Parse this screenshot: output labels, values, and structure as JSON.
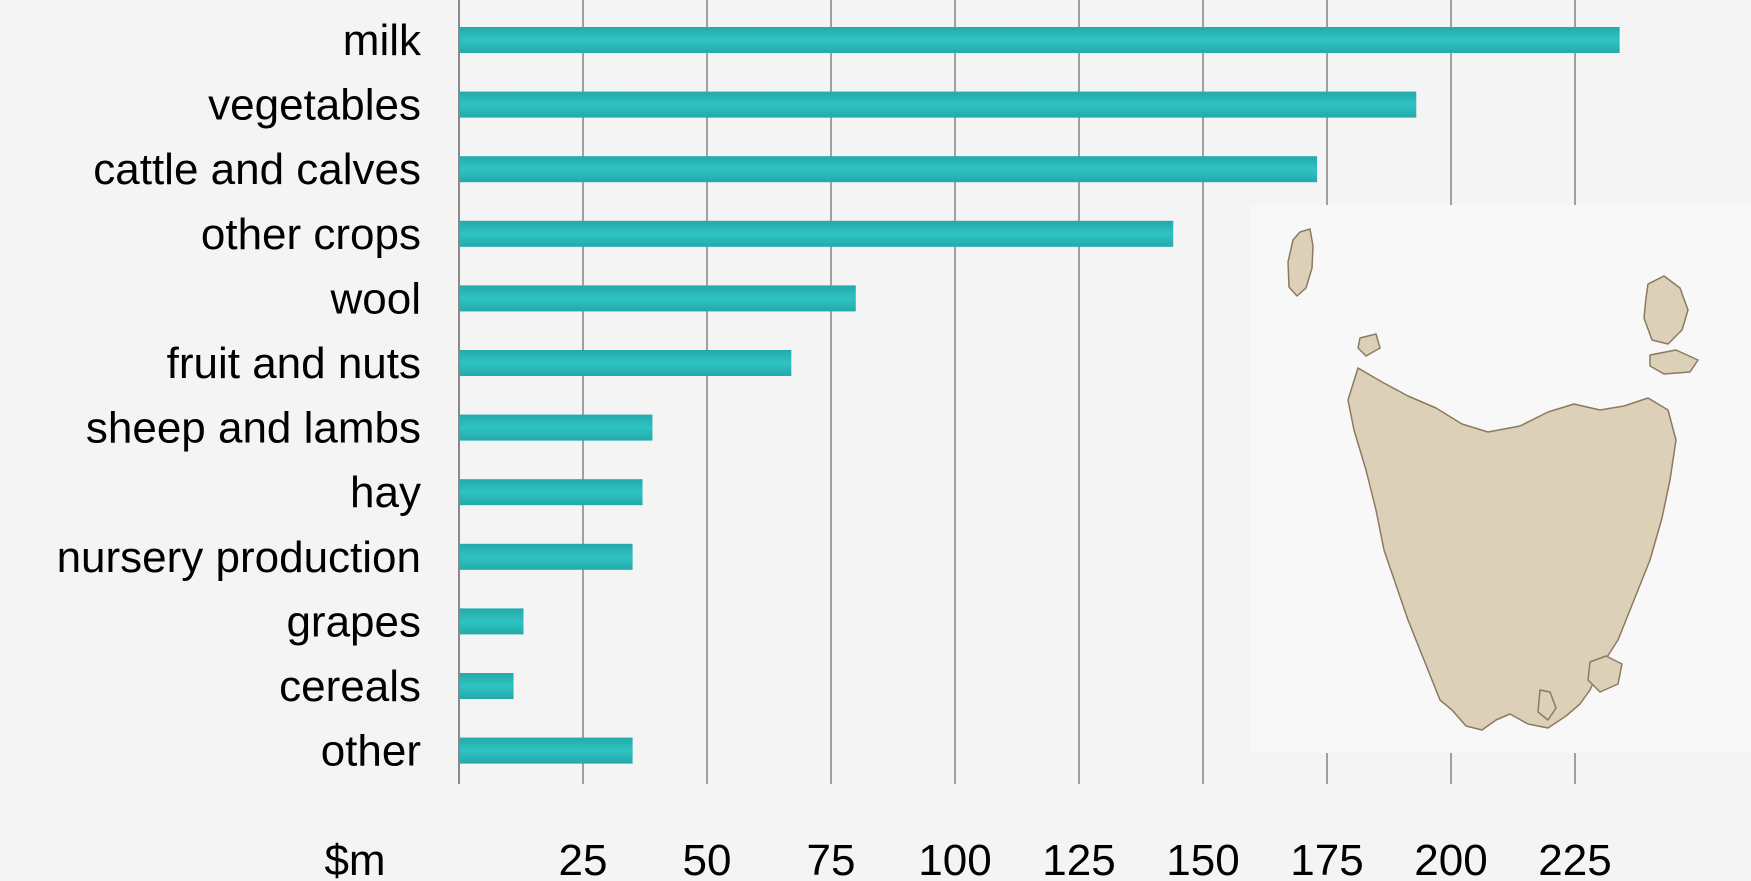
{
  "chart_data": {
    "type": "bar",
    "orientation": "horizontal",
    "title": "",
    "xlabel": "$m",
    "ylabel": "",
    "categories": [
      "milk",
      "vegetables",
      "cattle and calves",
      "other crops",
      "wool",
      "fruit and nuts",
      "sheep and lambs",
      "hay",
      "nursery production",
      "grapes",
      "cereals",
      "other"
    ],
    "values": [
      234,
      193,
      173,
      144,
      80,
      67,
      39,
      37,
      35,
      13,
      11,
      35
    ],
    "x_ticks": [
      25,
      50,
      75,
      100,
      125,
      150,
      175,
      200,
      225
    ],
    "xlim": [
      0,
      250
    ],
    "grid": true,
    "legend": "none",
    "bar_color": "#2fc3c3",
    "bar_color_dark": "#24a9a9"
  },
  "map": {
    "land_color": "#dcd0b8",
    "coast_color": "#8b7a60",
    "panel_color": "#f8f8f8",
    "icon": "tasmania-map"
  }
}
